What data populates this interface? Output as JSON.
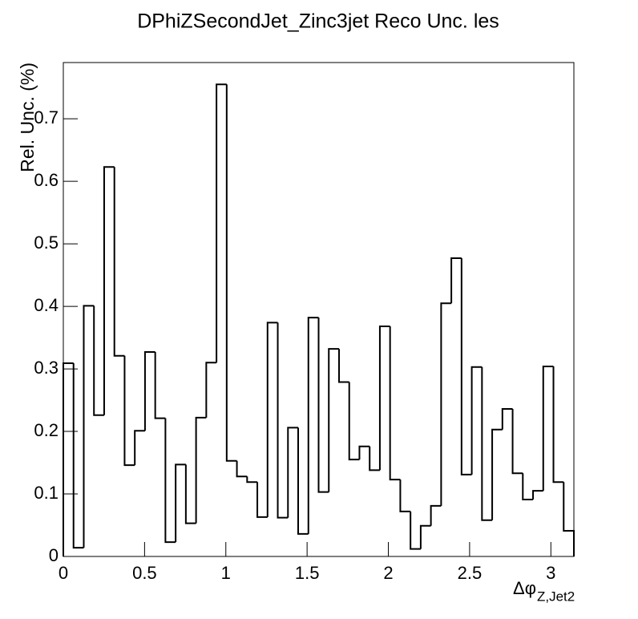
{
  "chart_data": {
    "type": "histogram",
    "title": "DPhiZSecondJet_Zinc3jet Reco Unc. les",
    "y_label": "Rel. Unc. (%)",
    "x_label": {
      "main": "Δφ",
      "subscript": "Z,Jet2"
    },
    "bins": [
      0,
      0.0628,
      0.1257,
      0.1885,
      0.2513,
      0.3142,
      0.377,
      0.4398,
      0.5027,
      0.5655,
      0.6283,
      0.6912,
      0.754,
      0.8168,
      0.8796,
      0.9425,
      1.0053,
      1.0681,
      1.131,
      1.1938,
      1.2566,
      1.3195,
      1.3823,
      1.4451,
      1.508,
      1.5708,
      1.6336,
      1.6965,
      1.7593,
      1.8221,
      1.885,
      1.9478,
      2.0106,
      2.0735,
      2.1363,
      2.1991,
      2.2619,
      2.3248,
      2.3876,
      2.4504,
      2.5133,
      2.5761,
      2.6389,
      2.7018,
      2.7646,
      2.8274,
      2.8903,
      2.9531,
      3.0159,
      3.0788,
      3.1416
    ],
    "values": [
      0.309,
      0.014,
      0.401,
      0.226,
      0.623,
      0.321,
      0.146,
      0.201,
      0.327,
      0.221,
      0.023,
      0.147,
      0.053,
      0.222,
      0.31,
      0.755,
      0.153,
      0.128,
      0.119,
      0.063,
      0.374,
      0.062,
      0.206,
      0.036,
      0.382,
      0.103,
      0.332,
      0.279,
      0.155,
      0.176,
      0.138,
      0.368,
      0.123,
      0.072,
      0.012,
      0.049,
      0.081,
      0.405,
      0.477,
      0.131,
      0.303,
      0.058,
      0.203,
      0.236,
      0.133,
      0.091,
      0.105,
      0.304,
      0.119,
      0.041
    ],
    "color": "#000000",
    "xlim": [
      0,
      3.1416
    ],
    "xticks": [
      0,
      0.5,
      1,
      1.5,
      2,
      2.5,
      3
    ],
    "ylim": [
      0,
      0.79
    ],
    "yticks": [
      0,
      0.1,
      0.2,
      0.3,
      0.4,
      0.5,
      0.6,
      0.7
    ]
  }
}
